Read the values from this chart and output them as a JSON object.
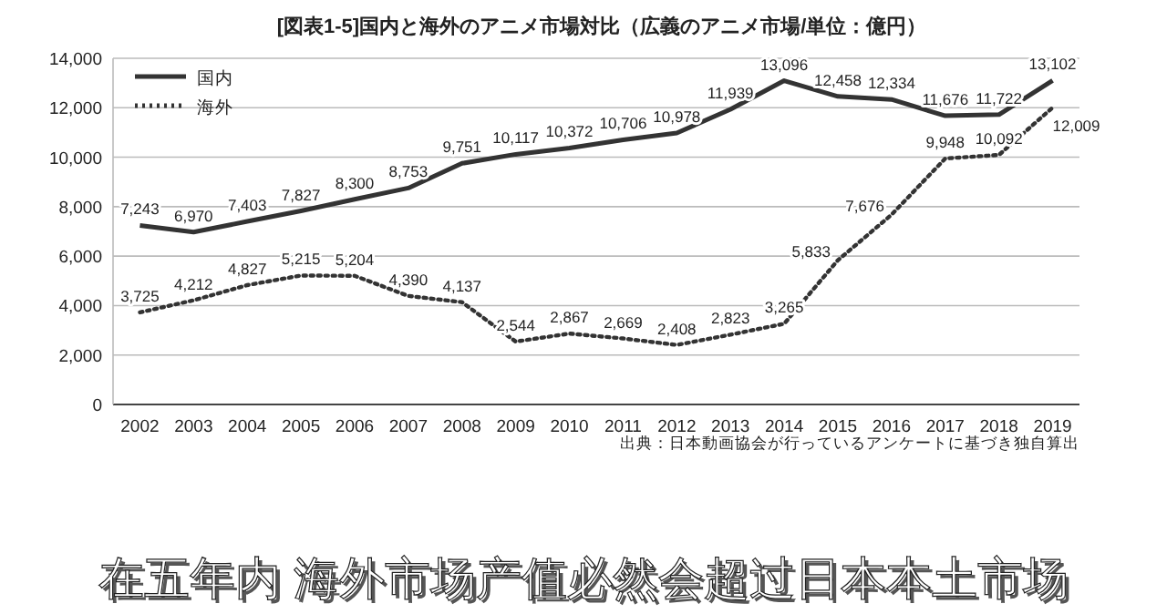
{
  "chart_data": {
    "type": "line",
    "title": "[図表1-5]国内と海外のアニメ市場対比（広義のアニメ市場/単位：億円）",
    "categories": [
      "2002",
      "2003",
      "2004",
      "2005",
      "2006",
      "2007",
      "2008",
      "2009",
      "2010",
      "2011",
      "2012",
      "2013",
      "2014",
      "2015",
      "2016",
      "2017",
      "2018",
      "2019"
    ],
    "series": [
      {
        "name": "国内",
        "color": "#333333",
        "line_style": "solid",
        "values": [
          7243,
          6970,
          7403,
          7827,
          8300,
          8753,
          9751,
          10117,
          10372,
          10706,
          10978,
          11939,
          13096,
          12458,
          12334,
          11676,
          11722,
          13102
        ],
        "value_labels": [
          "7,243",
          "6,970",
          "7,403",
          "7,827",
          "8,300",
          "8,753",
          "9,751",
          "10,117",
          "10,372",
          "10,706",
          "10,978",
          "11,939",
          "13,096",
          "12,458",
          "12,334",
          "11,676",
          "11,722",
          "13,102"
        ]
      },
      {
        "name": "海外",
        "color": "#333333",
        "line_style": "dotted",
        "values": [
          3725,
          4212,
          4827,
          5215,
          5204,
          4390,
          4137,
          2544,
          2867,
          2669,
          2408,
          2823,
          3265,
          5833,
          7676,
          9948,
          10092,
          12009
        ],
        "value_labels": [
          "3,725",
          "4,212",
          "4,827",
          "5,215",
          "5,204",
          "4,390",
          "4,137",
          "2,544",
          "2,867",
          "2,669",
          "2,408",
          "2,823",
          "3,265",
          "5,833",
          "7,676",
          "9,948",
          "10,092",
          "12,009"
        ]
      }
    ],
    "ylim": [
      0,
      14000
    ],
    "yticks": [
      {
        "value": 0,
        "label": "0"
      },
      {
        "value": 2000,
        "label": "2,000"
      },
      {
        "value": 4000,
        "label": "4,000"
      },
      {
        "value": 6000,
        "label": "6,000"
      },
      {
        "value": 8000,
        "label": "8,000"
      },
      {
        "value": 10000,
        "label": "10,000"
      },
      {
        "value": 12000,
        "label": "12,000"
      },
      {
        "value": 14000,
        "label": "14,000"
      }
    ],
    "grid": "y",
    "legend": "top left",
    "marker": "none",
    "annotations": [
      "出典：日本動画協会が行っているアンケートに基づき独自算出",
      "在五年内 海外市场产值必然会超过日本本土市场"
    ]
  }
}
